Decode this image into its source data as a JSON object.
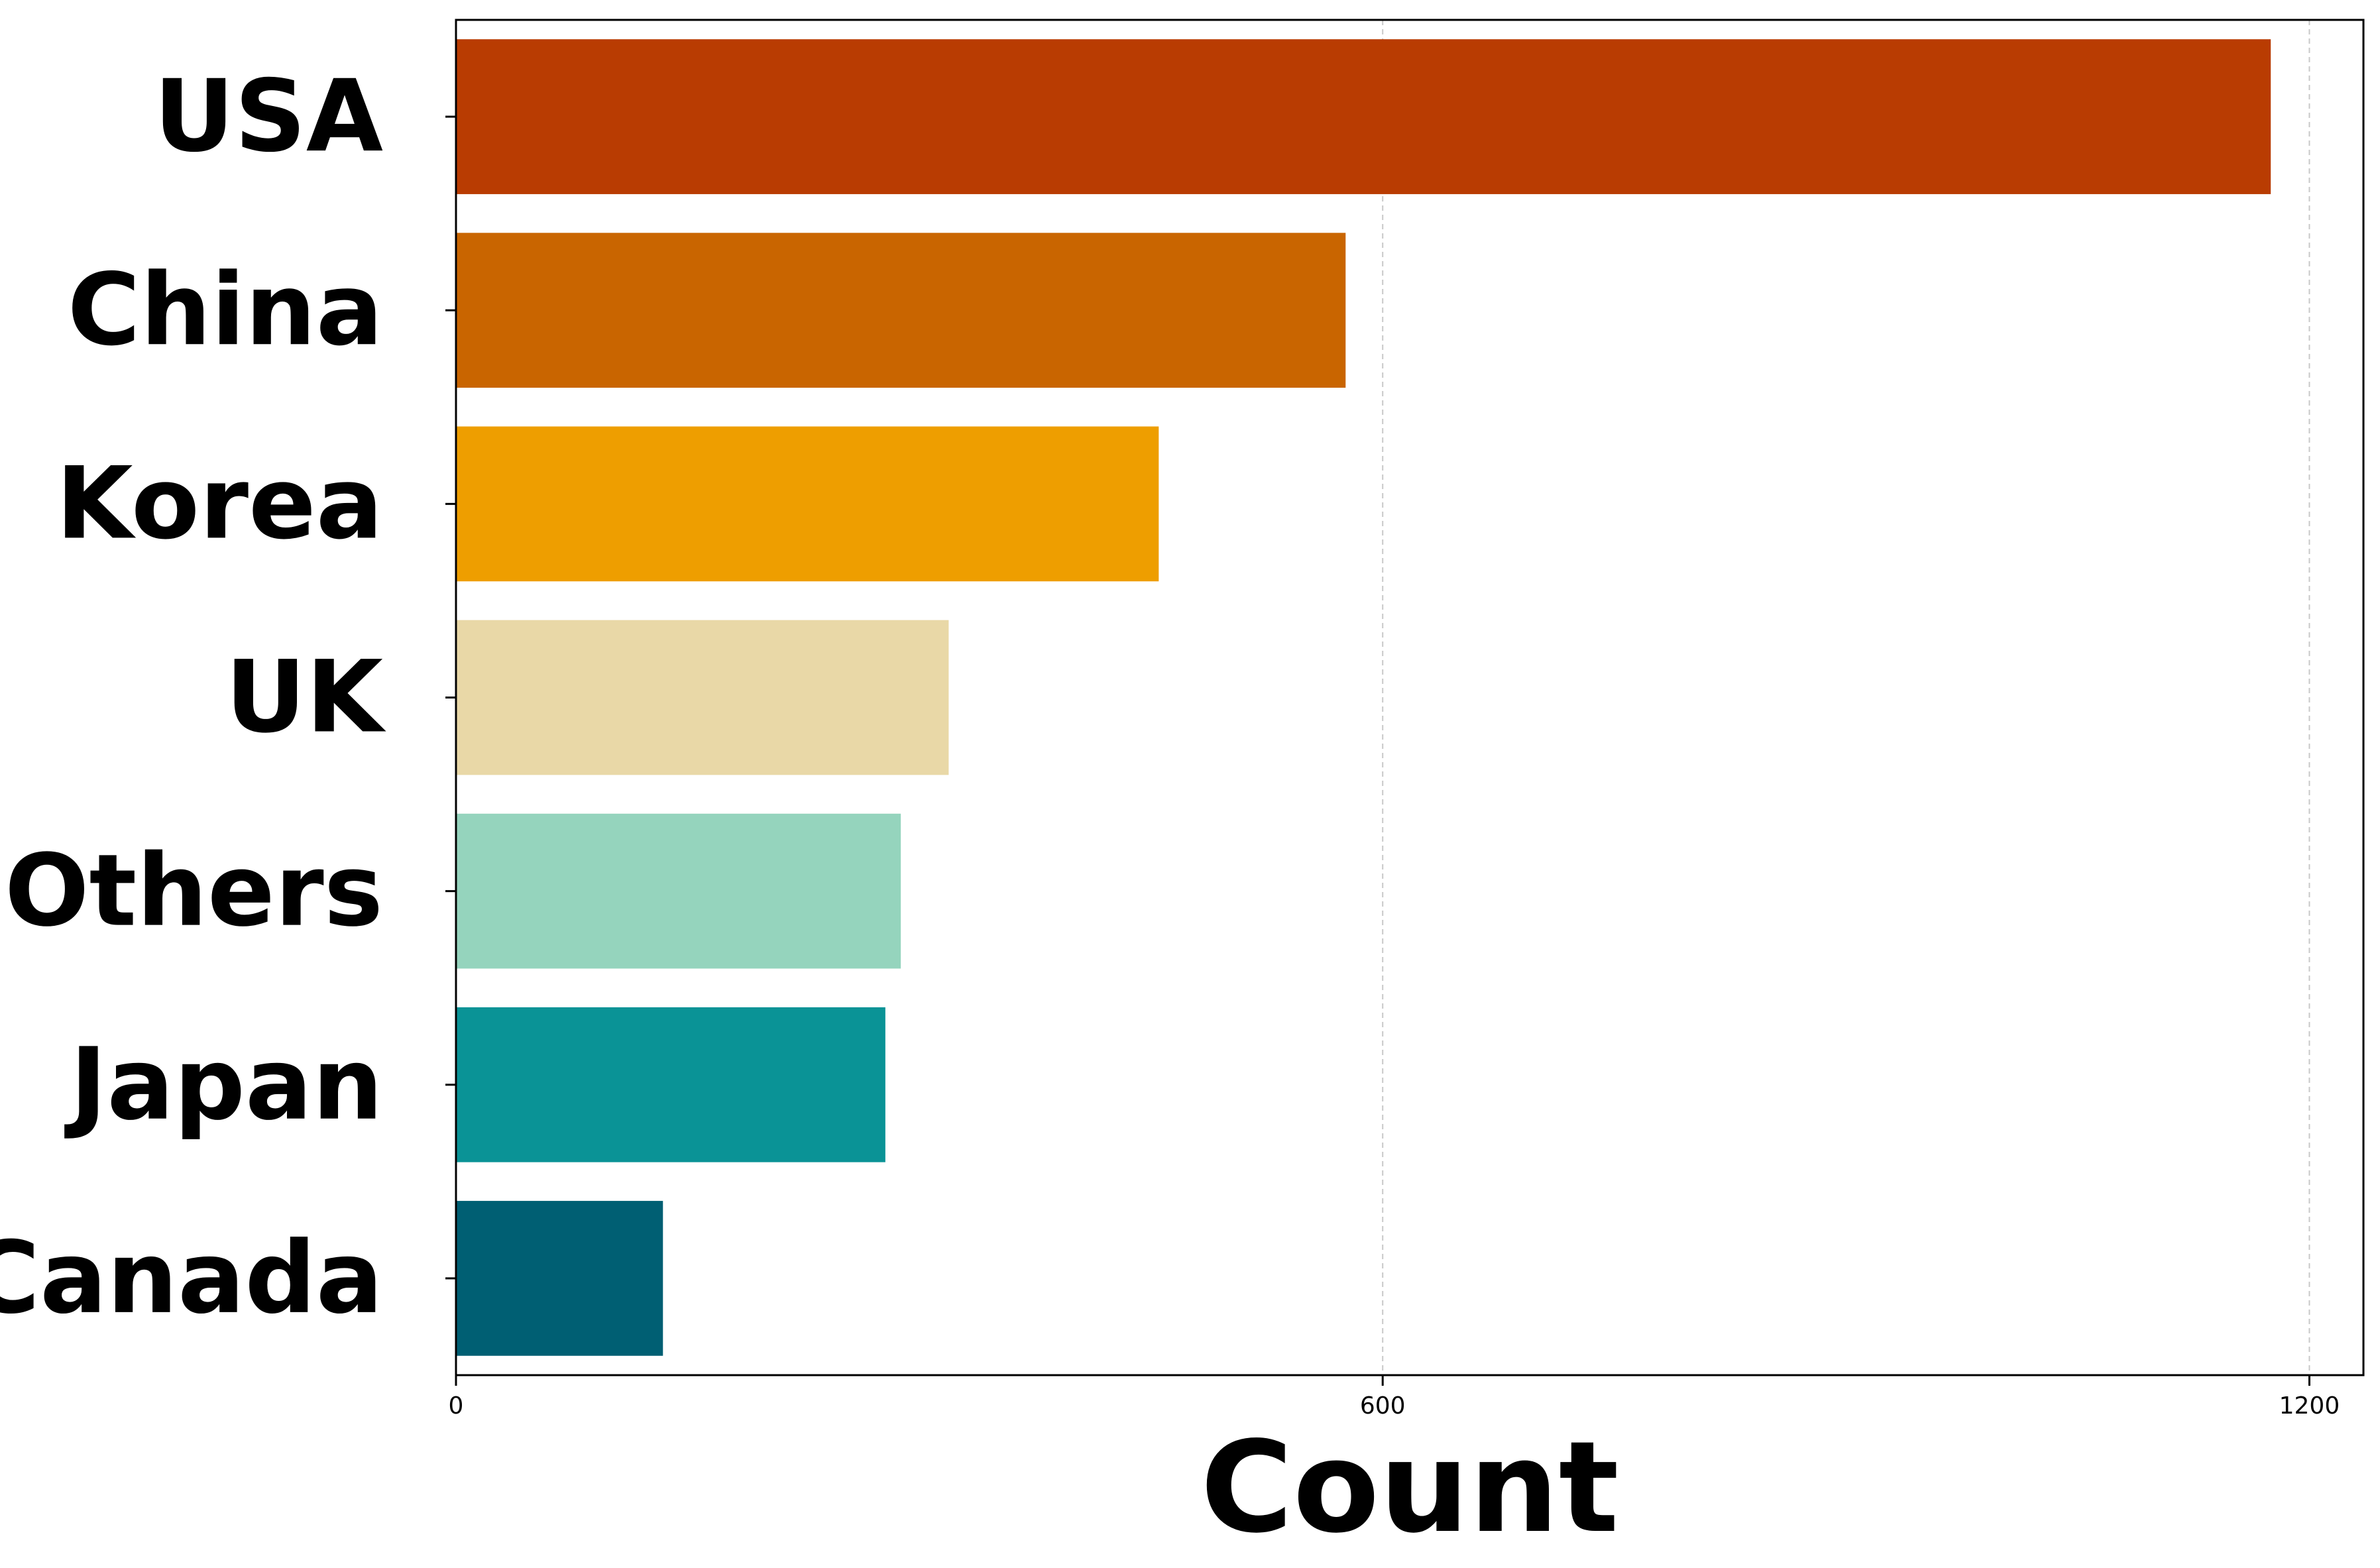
{
  "chart_data": {
    "type": "bar",
    "orientation": "horizontal",
    "categories": [
      "USA",
      "China",
      "Korea",
      "UK",
      "Others",
      "Japan",
      "Canada"
    ],
    "values": [
      1175,
      576,
      455,
      319,
      288,
      278,
      134
    ],
    "colors": [
      "#B93C02",
      "#C96500",
      "#EE9E00",
      "#E9D8A7",
      "#95D4BD",
      "#0A9396",
      "#005F73"
    ],
    "xlabel": "Count",
    "ylabel": "",
    "xlim": [
      0,
      1235
    ],
    "xticks": [
      0,
      600,
      1200
    ],
    "xtick_labels": [
      "0",
      "600",
      "1200"
    ],
    "grid": "vertical dashed"
  }
}
